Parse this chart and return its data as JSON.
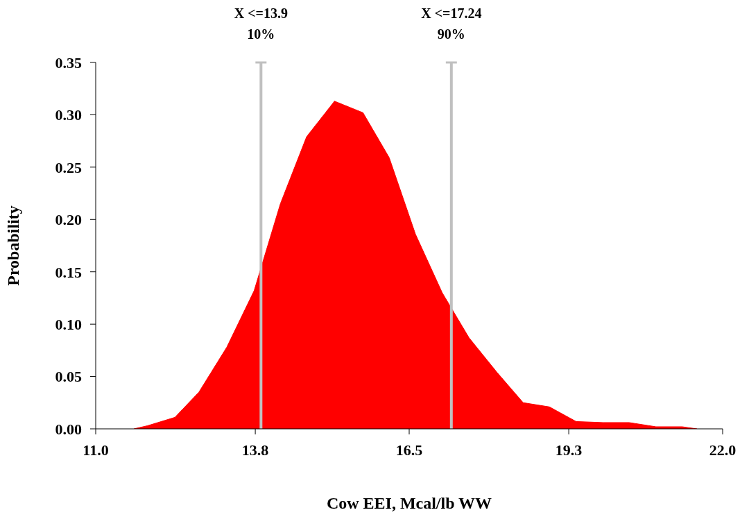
{
  "chart_data": {
    "type": "area",
    "xlabel": "Cow EEI, Mcal/lb WW",
    "ylabel": "Probability",
    "x": [
      11.67,
      11.91,
      12.39,
      12.81,
      13.3,
      13.78,
      14.24,
      14.7,
      15.19,
      15.69,
      16.15,
      16.61,
      17.08,
      17.55,
      18.04,
      18.5,
      18.96,
      19.43,
      19.9,
      20.36,
      20.83,
      21.29,
      21.55
    ],
    "series": [
      {
        "color": "#ff0000",
        "values": [
          0,
          0.003,
          0.011,
          0.035,
          0.078,
          0.132,
          0.215,
          0.279,
          0.313,
          0.302,
          0.259,
          0.186,
          0.13,
          0.087,
          0.054,
          0.025,
          0.021,
          0.007,
          0.006,
          0.006,
          0.002,
          0.002,
          0
        ]
      }
    ],
    "xlim": [
      11,
      22
    ],
    "xticks": [
      {
        "value": 11,
        "label": "11.0"
      },
      {
        "value": 13.8,
        "label": "13.8"
      },
      {
        "value": 16.5,
        "label": "16.5"
      },
      {
        "value": 19.3,
        "label": "19.3"
      },
      {
        "value": 22,
        "label": "22.0"
      }
    ],
    "ylim": [
      0,
      0.35
    ],
    "yticks": [
      {
        "value": 0,
        "label": "0.00"
      },
      {
        "value": 0.05,
        "label": "0.05"
      },
      {
        "value": 0.1,
        "label": "0.10"
      },
      {
        "value": 0.15,
        "label": "0.15"
      },
      {
        "value": 0.2,
        "label": "0.20"
      },
      {
        "value": 0.25,
        "label": "0.25"
      },
      {
        "value": 0.3,
        "label": "0.30"
      },
      {
        "value": 0.35,
        "label": "0.35"
      }
    ],
    "ref_lines": [
      {
        "axis": "x",
        "value": 13.9,
        "label": "X <=13.9\n10%",
        "color": "#c0c0c0"
      },
      {
        "axis": "x",
        "value": 17.24,
        "label": "X <=17.24\n90%",
        "color": "#c0c0c0"
      }
    ],
    "grid": false,
    "legend": false
  }
}
